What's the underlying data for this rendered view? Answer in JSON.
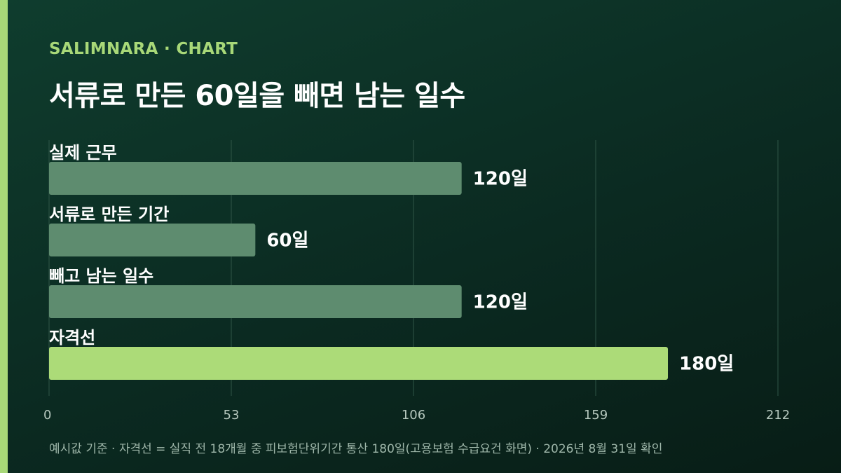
{
  "header": {
    "brand": "SALIMNARA · CHART",
    "title": "서류로 만든 60일을 빼면 남는 일수"
  },
  "footnote": "예시값 기준 · 자격선 = 실직 전 18개월 중 피보험단위기간 통산 180일(고용보험 수급요건 화면) · 2026년 8월 31일 확인",
  "colors": {
    "accent": "#a8d878",
    "bar": "#5e8c6f",
    "highlight_bar": "#acdb78",
    "grid": "#2f5546",
    "tick": "#b5c7bd"
  },
  "chart_data": {
    "type": "bar",
    "orientation": "horizontal",
    "categories": [
      "실제 근무",
      "서류로 만든 기간",
      "빼고 남는 일수",
      "자격선"
    ],
    "values": [
      120,
      60,
      120,
      180
    ],
    "value_labels": [
      "120일",
      "60일",
      "120일",
      "180일"
    ],
    "highlighted": [
      false,
      false,
      false,
      true
    ],
    "xlim": [
      0,
      212
    ],
    "xticks": [
      0,
      53,
      106,
      159,
      212
    ],
    "grid": true
  }
}
